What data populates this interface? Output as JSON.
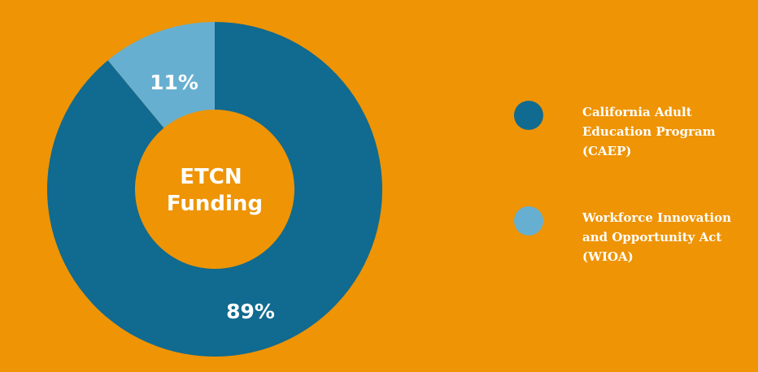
{
  "chart_data": {
    "type": "pie",
    "variant": "donut",
    "center_title": [
      "ETCN",
      "Funding"
    ],
    "slices": [
      {
        "label": "California Adult Education Program (CAEP)",
        "legend_lines": [
          "California Adult",
          "Education Program",
          "(CAEP)"
        ],
        "value": 89,
        "display": "89%",
        "color": "#116a8f"
      },
      {
        "label": "Workforce Innovation and Opportunity Act (WIOA)",
        "legend_lines": [
          "Workforce Innovation",
          "and Opportunity Act",
          "(WIOA)"
        ],
        "value": 11,
        "display": "11%",
        "color": "#67afd0"
      }
    ],
    "legend_placement": "right"
  }
}
